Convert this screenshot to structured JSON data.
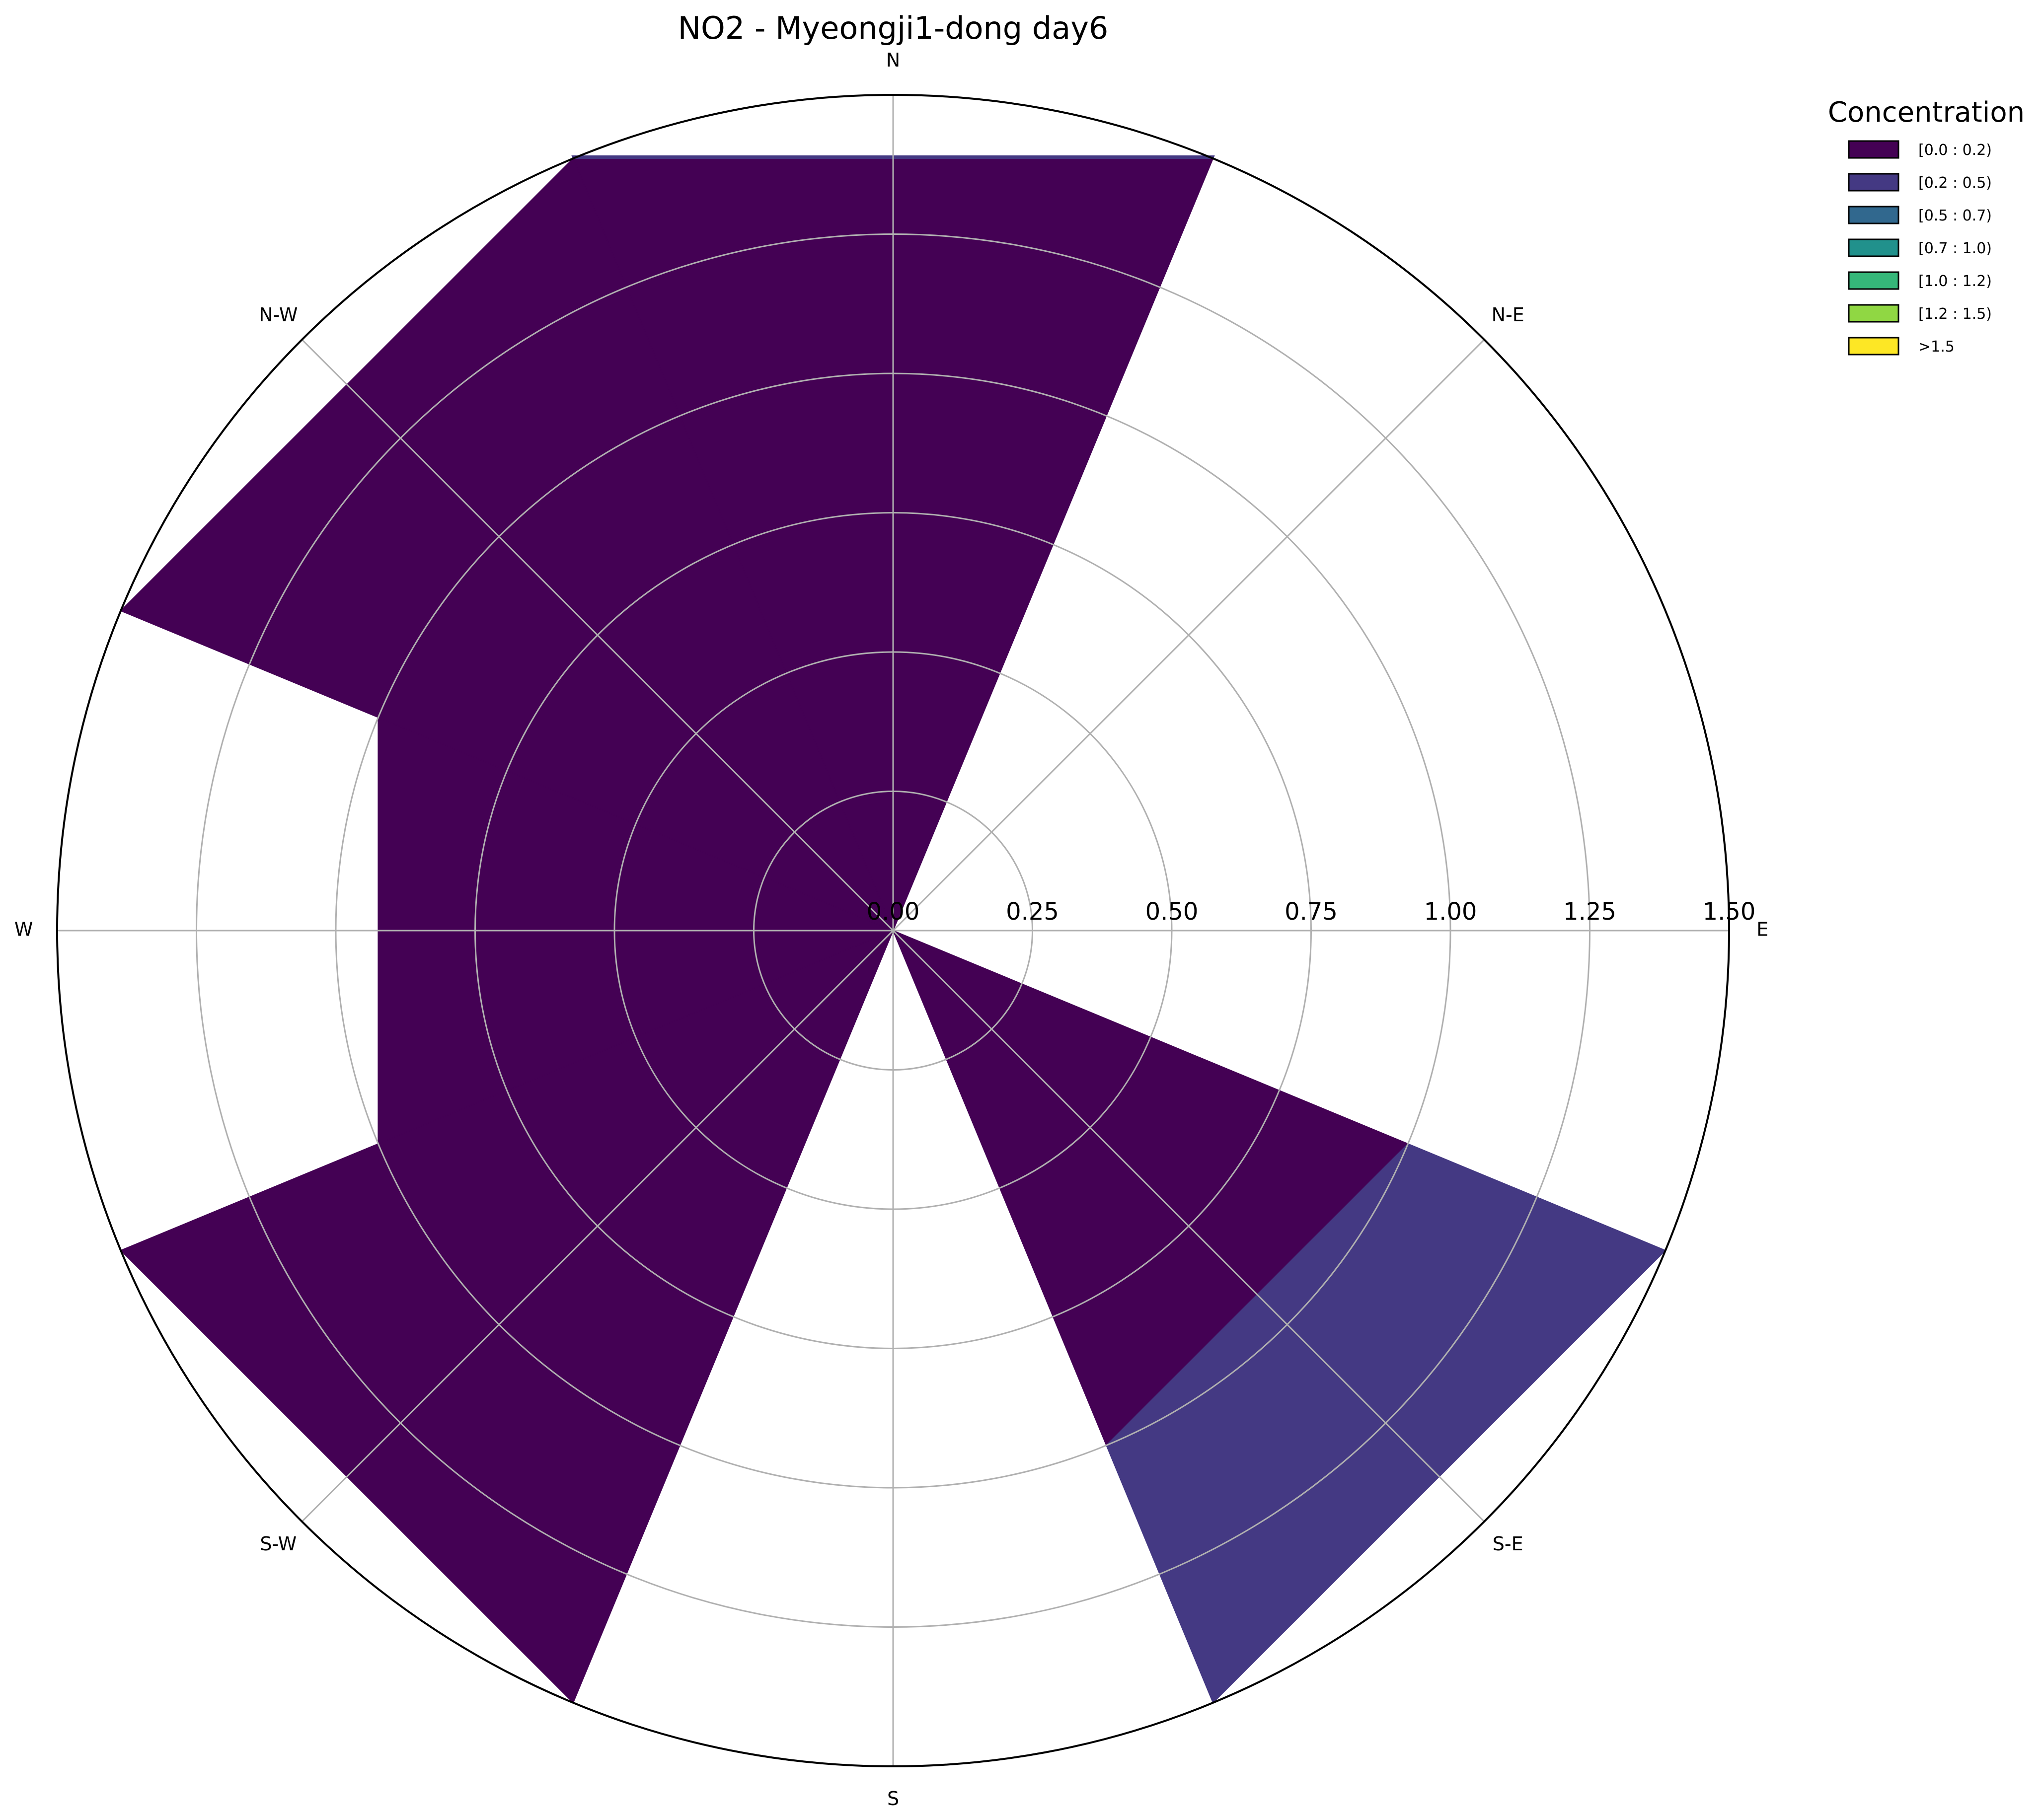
{
  "chart_data": {
    "type": "windrose",
    "title": "NO2 - Myeongji1-dong day6",
    "directions": [
      "N",
      "N-E",
      "E",
      "S-E",
      "S",
      "S-W",
      "W",
      "N-W"
    ],
    "radial_ticks": [
      "0.00",
      "0.25",
      "0.50",
      "0.75",
      "1.00",
      "1.25",
      "1.50"
    ],
    "rmax": 1.5,
    "legend": {
      "title": "Concentration",
      "position": "top-right",
      "entries": [
        "[0.0 : 0.2)",
        "[0.2 : 0.5)",
        "[0.5 : 0.7)",
        "[0.7 : 1.0)",
        "[1.0 : 1.2)",
        "[1.2 : 1.5)",
        ">1.5"
      ],
      "colors": [
        "#440154",
        "#443983",
        "#31688e",
        "#21918c",
        "#35b779",
        "#90d743",
        "#fde725"
      ]
    },
    "grid": true,
    "series": [
      {
        "name": "[0.0 : 0.2)",
        "color": "#440154",
        "values": {
          "N": 1.5,
          "N-E": 0,
          "E": 0,
          "S-E": 1.0,
          "S": 0,
          "S-W": 1.5,
          "W": 1.0,
          "N-W": 1.5
        }
      },
      {
        "name": "[0.2 : 0.5)",
        "color": "#443983",
        "values": {
          "N": 0.005,
          "N-E": 0,
          "E": 0,
          "S-E": 0.5,
          "S": 0,
          "S-W": 0,
          "W": 0,
          "N-W": 0
        }
      }
    ]
  }
}
